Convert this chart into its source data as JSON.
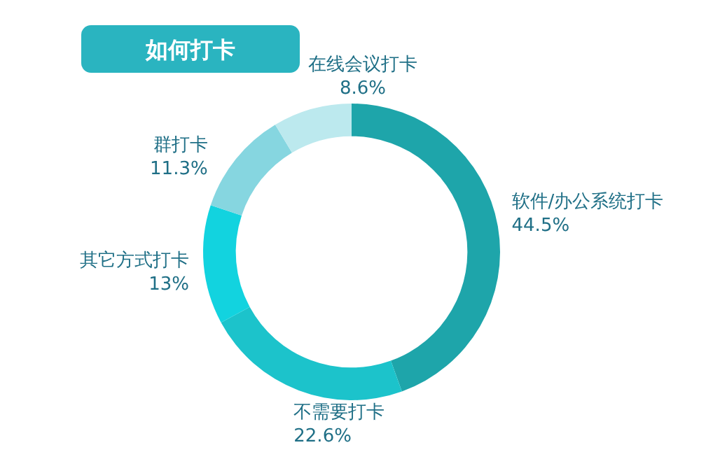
{
  "chart_data": {
    "type": "donut",
    "title": "如何打卡",
    "categories": [
      "软件/办公系统打卡",
      "不需要打卡",
      "其它方式打卡",
      "群打卡",
      "在线会议打卡"
    ],
    "values": [
      44.5,
      22.6,
      13,
      11.3,
      8.6
    ],
    "value_labels": [
      "44.5%",
      "22.6%",
      "13%",
      "11.3%",
      "8.6%"
    ],
    "colors": [
      "#1ea5aa",
      "#1cc3cb",
      "#12d3df",
      "#86d6e0",
      "#bce9ee"
    ]
  }
}
